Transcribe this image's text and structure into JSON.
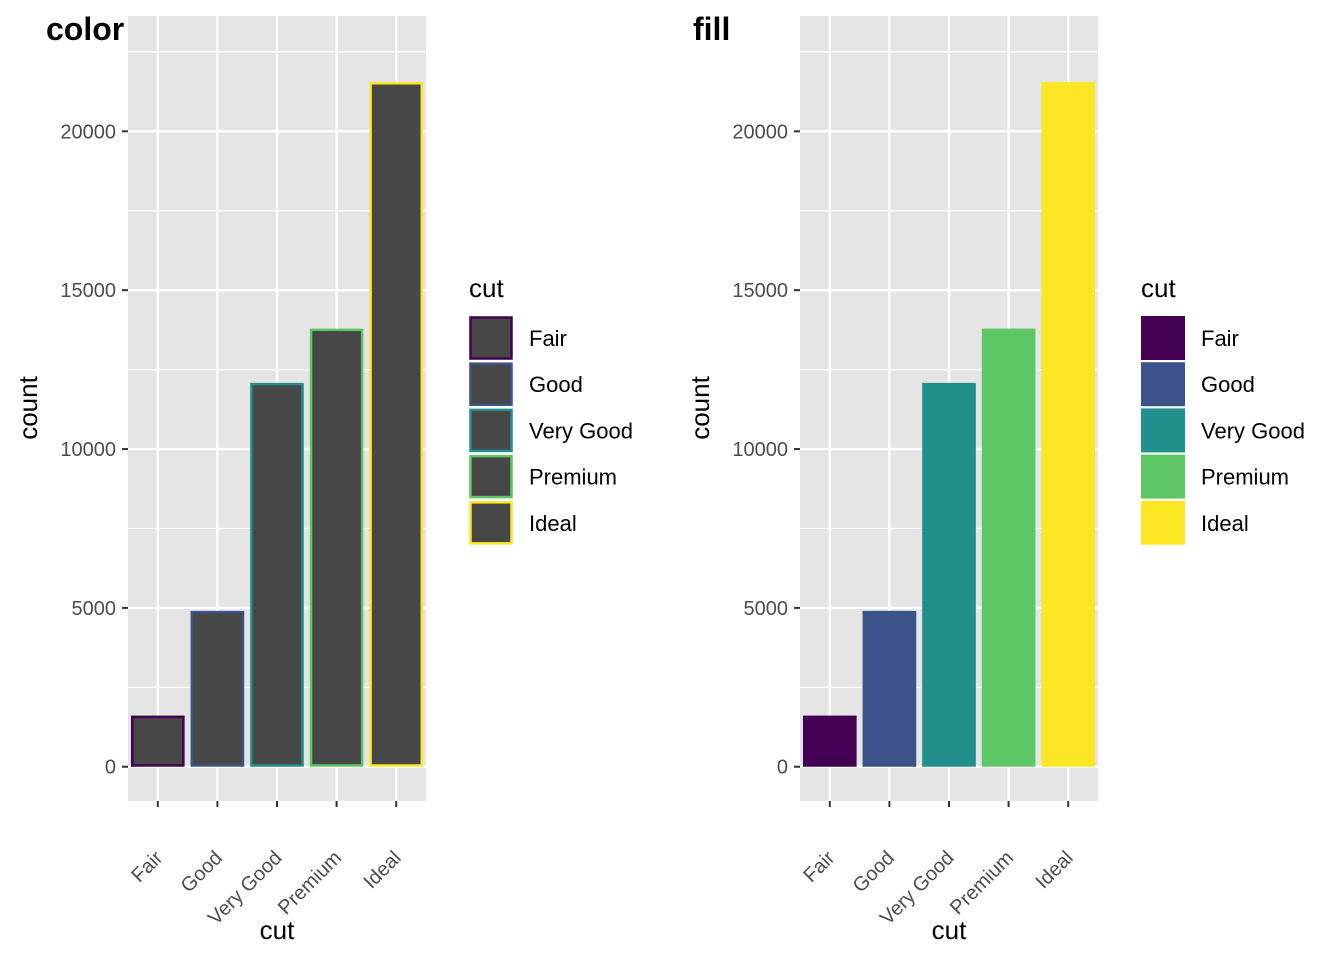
{
  "chart_data": [
    {
      "type": "bar",
      "title": "color",
      "variant": "outline",
      "xlabel": "cut",
      "ylabel": "count",
      "categories": [
        "Fair",
        "Good",
        "Very Good",
        "Premium",
        "Ideal"
      ],
      "values": [
        1610,
        4906,
        12082,
        13791,
        21551
      ],
      "yticks": [
        0,
        5000,
        10000,
        15000,
        20000
      ],
      "ytick_labels": [
        "0",
        "5000",
        "10000",
        "15000",
        "20000"
      ],
      "ylim": [
        -1078,
        23629
      ],
      "grid": true,
      "bar_fill": "#474747",
      "legend": {
        "title": "cut",
        "labels": [
          "Fair",
          "Good",
          "Very Good",
          "Premium",
          "Ideal"
        ],
        "placement": "right"
      },
      "colors": [
        "#440154",
        "#3b528b",
        "#21908c",
        "#5dc863",
        "#fde725"
      ]
    },
    {
      "type": "bar",
      "title": "fill",
      "variant": "filled",
      "xlabel": "cut",
      "ylabel": "count",
      "categories": [
        "Fair",
        "Good",
        "Very Good",
        "Premium",
        "Ideal"
      ],
      "values": [
        1610,
        4906,
        12082,
        13791,
        21551
      ],
      "yticks": [
        0,
        5000,
        10000,
        15000,
        20000
      ],
      "ytick_labels": [
        "0",
        "5000",
        "10000",
        "15000",
        "20000"
      ],
      "ylim": [
        -1078,
        23629
      ],
      "grid": true,
      "legend": {
        "title": "cut",
        "labels": [
          "Fair",
          "Good",
          "Very Good",
          "Premium",
          "Ideal"
        ],
        "placement": "right"
      },
      "colors": [
        "#440154",
        "#3b528b",
        "#21908c",
        "#5dc863",
        "#fde725"
      ]
    }
  ],
  "theme": {
    "panel_background": "#e5e5e5",
    "grid_color": "#ffffff",
    "tick_color": "#333333",
    "tick_text_color": "#4d4d4d"
  }
}
